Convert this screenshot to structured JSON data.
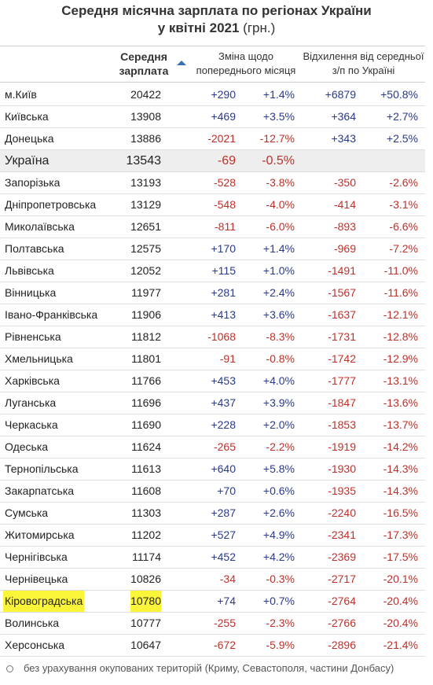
{
  "header": {
    "title_line1": "Середня місячна зарплата по регіонах України",
    "title_line2": "у квітні 2021",
    "title_unit": "(грн.)"
  },
  "table": {
    "columns": [
      "Середня зарплата",
      "Зміна щодо попереднього місяця",
      "Відхилення від середньої з/п по Україні"
    ],
    "rows": [
      [
        "м.Київ",
        "20422",
        "+290",
        "+1.4%",
        "+6879",
        "+50.8%"
      ],
      [
        "Київська",
        "13908",
        "+469",
        "+3.5%",
        "+364",
        "+2.7%"
      ],
      [
        "Донецька",
        "13886",
        "-2021",
        "-12.7%",
        "+343",
        "+2.5%"
      ],
      [
        "Україна",
        "13543",
        "-69",
        "-0.5%"
      ],
      [
        "Запорізька",
        "13193",
        "-528",
        "-3.8%",
        "-350",
        "-2.6%"
      ],
      [
        "Дніпропетровська",
        "13129",
        "-548",
        "-4.0%",
        "-414",
        "-3.1%"
      ],
      [
        "Миколаївська",
        "12651",
        "-811",
        "-6.0%",
        "-893",
        "-6.6%"
      ],
      [
        "Полтавська",
        "12575",
        "+170",
        "+1.4%",
        "-969",
        "-7.2%"
      ],
      [
        "Львівська",
        "12052",
        "+115",
        "+1.0%",
        "-1491",
        "-11.0%"
      ],
      [
        "Вінницька",
        "11977",
        "+281",
        "+2.4%",
        "-1567",
        "-11.6%"
      ],
      [
        "Івано-Франківська",
        "11906",
        "+413",
        "+3.6%",
        "-1637",
        "-12.1%"
      ],
      [
        "Рівненська",
        "11812",
        "-1068",
        "-8.3%",
        "-1731",
        "-12.8%"
      ],
      [
        "Хмельницька",
        "11801",
        "-91",
        "-0.8%",
        "-1742",
        "-12.9%"
      ],
      [
        "Харківська",
        "11766",
        "+453",
        "+4.0%",
        "-1777",
        "-13.1%"
      ],
      [
        "Луганська",
        "11696",
        "+437",
        "+3.9%",
        "-1847",
        "-13.6%"
      ],
      [
        "Черкаська",
        "11690",
        "+228",
        "+2.0%",
        "-1853",
        "-13.7%"
      ],
      [
        "Одеська",
        "11624",
        "-265",
        "-2.2%",
        "-1919",
        "-14.2%"
      ],
      [
        "Тернопільська",
        "11613",
        "+640",
        "+5.8%",
        "-1930",
        "-14.3%"
      ],
      [
        "Закарпатська",
        "11608",
        "+70",
        "+0.6%",
        "-1935",
        "-14.3%"
      ],
      [
        "Сумська",
        "11303",
        "+287",
        "+2.6%",
        "-2240",
        "-16.5%"
      ],
      [
        "Житомирська",
        "11202",
        "+527",
        "+4.9%",
        "-2341",
        "-17.3%"
      ],
      [
        "Чернігівська",
        "11174",
        "+452",
        "+4.2%",
        "-2369",
        "-17.5%"
      ],
      [
        "Чернівецька",
        "10826",
        "-34",
        "-0.3%",
        "-2717",
        "-20.1%"
      ],
      [
        "Кіровоградська",
        "10780",
        "+74",
        "+0.7%",
        "-2764",
        "-20.4%"
      ],
      [
        "Волинська",
        "10777",
        "-255",
        "-2.3%",
        "-2766",
        "-20.4%"
      ],
      [
        "Херсонська",
        "10647",
        "-672",
        "-5.9%",
        "-2896",
        "-21.4%"
      ]
    ]
  },
  "footnote": "без урахування окупованих територій (Криму, Севастополя, частини Донбасу)"
}
